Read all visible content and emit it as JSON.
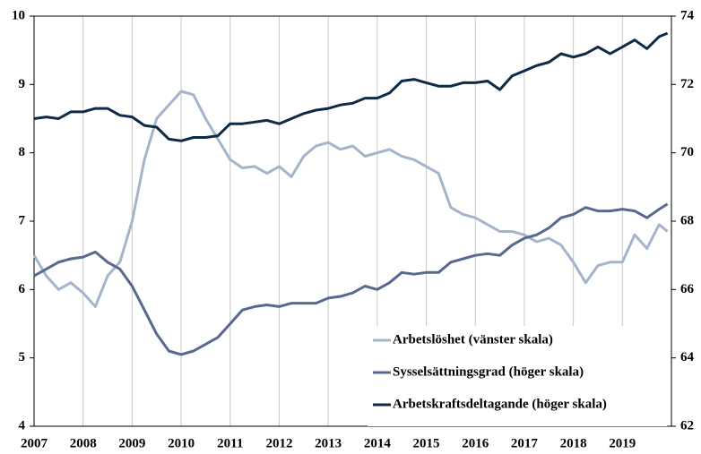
{
  "chart_data": {
    "type": "line",
    "x": [
      2007.0,
      2007.25,
      2007.5,
      2007.75,
      2008.0,
      2008.25,
      2008.5,
      2008.75,
      2009.0,
      2009.25,
      2009.5,
      2009.75,
      2010.0,
      2010.25,
      2010.5,
      2010.75,
      2011.0,
      2011.25,
      2011.5,
      2011.75,
      2012.0,
      2012.25,
      2012.5,
      2012.75,
      2013.0,
      2013.25,
      2013.5,
      2013.75,
      2014.0,
      2014.25,
      2014.5,
      2014.75,
      2015.0,
      2015.25,
      2015.5,
      2015.75,
      2016.0,
      2016.25,
      2016.5,
      2016.75,
      2017.0,
      2017.25,
      2017.5,
      2017.75,
      2018.0,
      2018.25,
      2018.5,
      2018.75,
      2019.0,
      2019.25,
      2019.5,
      2019.75,
      2019.92
    ],
    "series": [
      {
        "name": "Arbetslöshet (vänster skala)",
        "color": "#a3b4cb",
        "axis": "y",
        "values": [
          6.5,
          6.2,
          6.0,
          6.1,
          5.95,
          5.75,
          6.2,
          6.4,
          7.0,
          7.9,
          8.5,
          8.7,
          8.9,
          8.85,
          8.5,
          8.2,
          7.9,
          7.78,
          7.8,
          7.7,
          7.8,
          7.65,
          7.95,
          8.1,
          8.15,
          8.05,
          8.1,
          7.95,
          8.0,
          8.05,
          7.95,
          7.9,
          7.8,
          7.7,
          7.2,
          7.1,
          7.05,
          6.95,
          6.85,
          6.85,
          6.8,
          6.7,
          6.75,
          6.65,
          6.4,
          6.1,
          6.35,
          6.4,
          6.4,
          6.8,
          6.6,
          6.95,
          6.85
        ]
      },
      {
        "name": "Sysselsättningsgrad (höger skala)",
        "color": "#57698f",
        "axis": "y2",
        "values": [
          66.4,
          66.6,
          66.8,
          66.9,
          66.95,
          67.1,
          66.8,
          66.6,
          66.1,
          65.4,
          64.7,
          64.2,
          64.1,
          64.2,
          64.4,
          64.6,
          65.0,
          65.4,
          65.5,
          65.55,
          65.5,
          65.6,
          65.6,
          65.6,
          65.75,
          65.8,
          65.9,
          66.1,
          66.0,
          66.2,
          66.5,
          66.45,
          66.5,
          66.5,
          66.8,
          66.9,
          67.0,
          67.05,
          67.0,
          67.3,
          67.5,
          67.6,
          67.8,
          68.1,
          68.2,
          68.4,
          68.3,
          68.3,
          68.35,
          68.3,
          68.1,
          68.35,
          68.5
        ]
      },
      {
        "name": "Arbetskraftsdeltagande (höger skala)",
        "color": "#0e2a45",
        "axis": "y2",
        "values": [
          71.0,
          71.05,
          71.0,
          71.2,
          71.2,
          71.3,
          71.3,
          71.1,
          71.05,
          70.8,
          70.75,
          70.4,
          70.35,
          70.45,
          70.45,
          70.5,
          70.85,
          70.85,
          70.9,
          70.95,
          70.85,
          71.0,
          71.15,
          71.25,
          71.3,
          71.4,
          71.45,
          71.6,
          71.6,
          71.75,
          72.1,
          72.15,
          72.05,
          71.95,
          71.95,
          72.05,
          72.05,
          72.1,
          71.85,
          72.25,
          72.4,
          72.55,
          72.65,
          72.9,
          72.8,
          72.9,
          73.1,
          72.9,
          73.1,
          73.3,
          73.05,
          73.4,
          73.5
        ]
      }
    ],
    "xlim": [
      2007,
      2020
    ],
    "xticks": [
      2007,
      2008,
      2009,
      2010,
      2011,
      2012,
      2013,
      2014,
      2015,
      2016,
      2017,
      2018,
      2019
    ],
    "ylim": [
      4,
      10
    ],
    "yticks": [
      4,
      5,
      6,
      7,
      8,
      9,
      10
    ],
    "y2lim": [
      62,
      74
    ],
    "y2ticks": [
      62,
      64,
      66,
      68,
      70,
      72,
      74
    ],
    "grid": true,
    "legend": "lower right"
  }
}
